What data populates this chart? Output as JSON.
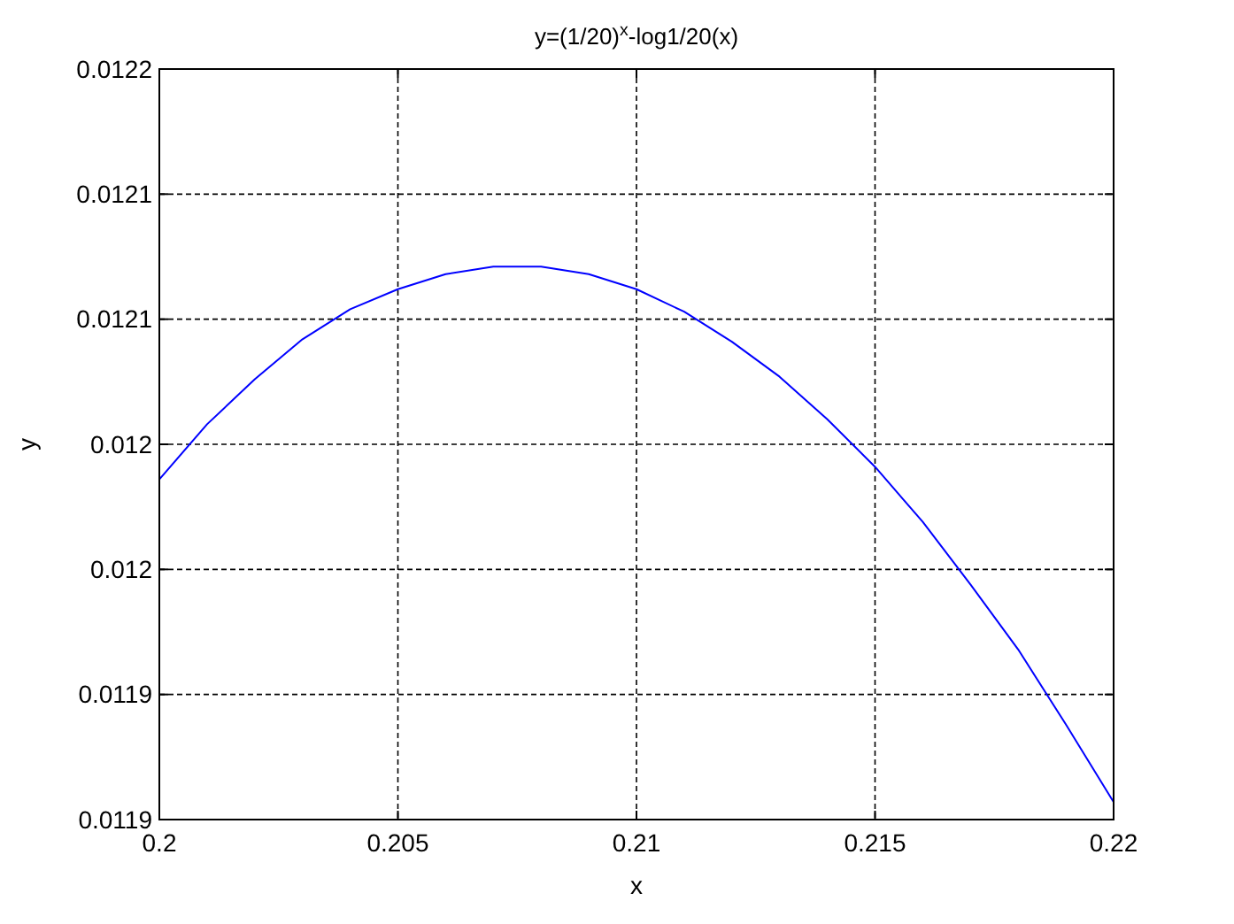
{
  "chart_data": {
    "type": "line",
    "title": "y=(1/20)$^{x}$-log1/20(x)",
    "xlabel": "x",
    "ylabel": "y",
    "x": [
      0.2,
      0.201,
      0.202,
      0.203,
      0.204,
      0.205,
      0.206,
      0.207,
      0.208,
      0.209,
      0.21,
      0.211,
      0.212,
      0.213,
      0.214,
      0.215,
      0.216,
      0.217,
      0.218,
      0.219,
      0.22
    ],
    "series": [
      {
        "color": "#0000ff",
        "values": [
          0.012036,
          0.012058,
          0.012076,
          0.012092,
          0.012104,
          0.012112,
          0.012118,
          0.012121,
          0.012121,
          0.012118,
          0.012112,
          0.012103,
          0.012091,
          0.012077,
          0.01206,
          0.012041,
          0.012019,
          0.011994,
          0.011968,
          0.011938,
          0.011907
        ]
      }
    ],
    "xlim": [
      0.2,
      0.22
    ],
    "xticks": [
      0.2,
      0.205,
      0.21,
      0.215,
      0.22
    ],
    "ylim": [
      0.0119,
      0.0122
    ],
    "yticks": [
      0.0119,
      {
        "value": 0.01195,
        "label": "0.0119"
      },
      0.012,
      {
        "value": 0.01205,
        "label": "0.012"
      },
      0.0121,
      {
        "value": 0.01215,
        "label": "0.0121"
      },
      0.0122
    ],
    "grid": true,
    "line_style": "solid",
    "marker": "none"
  }
}
